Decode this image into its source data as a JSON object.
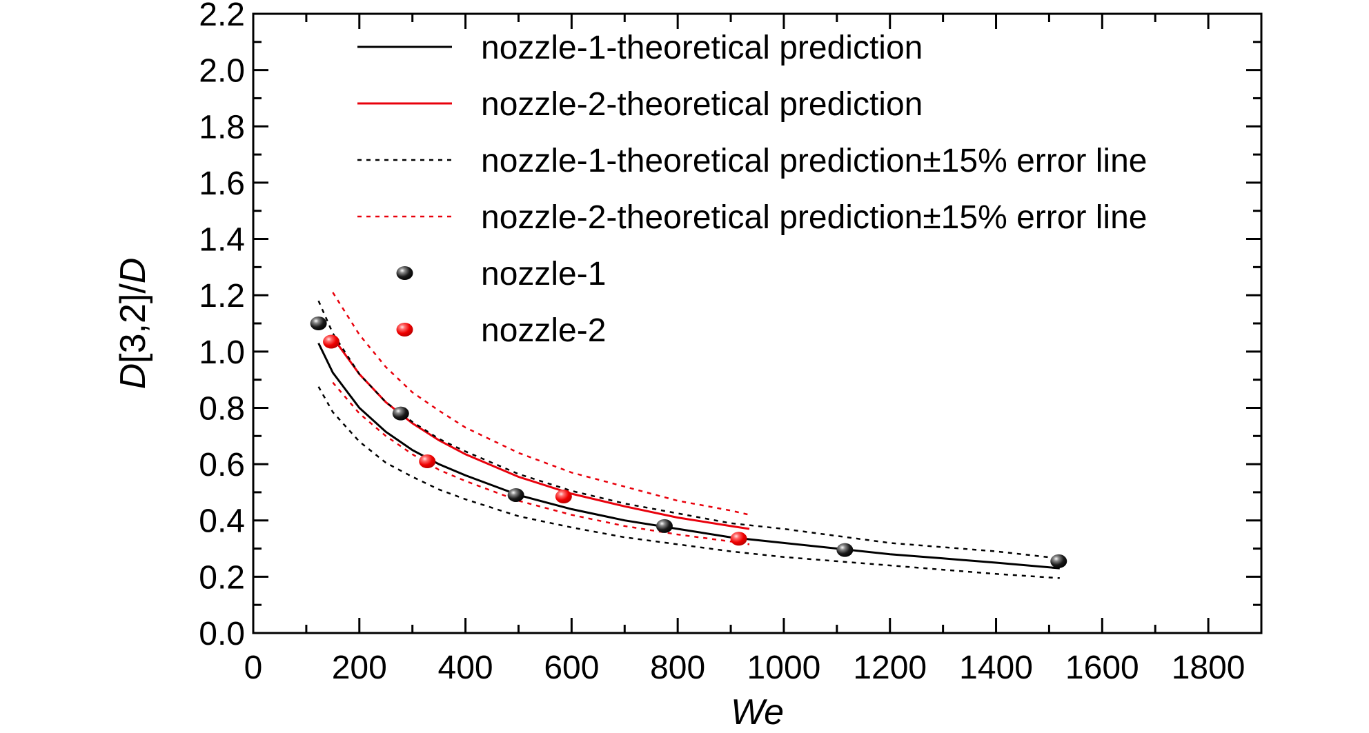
{
  "chart_data": {
    "type": "scatter",
    "xlabel": "We",
    "ylabel_parts": [
      "D",
      "[3,2]/",
      "D"
    ],
    "xlim": [
      0,
      1900
    ],
    "ylim": [
      0,
      2.2
    ],
    "x_ticks": [
      "0",
      "200",
      "400",
      "600",
      "800",
      "1000",
      "1200",
      "1400",
      "1600",
      "1800"
    ],
    "x_tick_values": [
      0,
      200,
      400,
      600,
      800,
      1000,
      1200,
      1400,
      1600,
      1800
    ],
    "y_ticks": [
      "0.0",
      "0.2",
      "0.4",
      "0.6",
      "0.8",
      "1.0",
      "1.2",
      "1.4",
      "1.6",
      "1.8",
      "2.0",
      "2.2"
    ],
    "y_tick_values": [
      0,
      0.2,
      0.4,
      0.6,
      0.8,
      1.0,
      1.2,
      1.4,
      1.6,
      1.8,
      2.0,
      2.2
    ],
    "legend_position": "top",
    "series": [
      {
        "name": "nozzle-1-theoretical prediction",
        "kind": "line",
        "style": "solid",
        "color": "#000000",
        "x": [
          123,
          150,
          200,
          250,
          300,
          350,
          400,
          500,
          600,
          700,
          800,
          900,
          1000,
          1100,
          1200,
          1300,
          1400,
          1520
        ],
        "y": [
          1.03,
          0.925,
          0.8,
          0.715,
          0.65,
          0.6,
          0.56,
          0.49,
          0.44,
          0.4,
          0.37,
          0.34,
          0.32,
          0.3,
          0.28,
          0.265,
          0.25,
          0.23
        ]
      },
      {
        "name": "nozzle-2-theoretical prediction",
        "kind": "line",
        "style": "solid",
        "color": "#e8000b",
        "x": [
          150,
          200,
          250,
          300,
          350,
          400,
          500,
          600,
          700,
          800,
          900,
          935
        ],
        "y": [
          1.05,
          0.92,
          0.82,
          0.745,
          0.685,
          0.635,
          0.555,
          0.495,
          0.45,
          0.41,
          0.38,
          0.37
        ]
      },
      {
        "name": "nozzle-1-theoretical prediction±15% error line",
        "kind": "line",
        "style": "dotted",
        "color": "#000000",
        "bands": [
          {
            "x": [
              123,
              150,
              200,
              250,
              300,
              350,
              400,
              500,
              600,
              700,
              800,
              900,
              1000,
              1100,
              1200,
              1300,
              1400,
              1520
            ],
            "y": [
              1.18,
              1.065,
              0.92,
              0.82,
              0.75,
              0.69,
              0.645,
              0.565,
              0.505,
              0.46,
              0.425,
              0.39,
              0.37,
              0.345,
              0.32,
              0.305,
              0.29,
              0.265
            ]
          },
          {
            "x": [
              123,
              150,
              200,
              250,
              300,
              350,
              400,
              500,
              600,
              700,
              800,
              900,
              1000,
              1100,
              1200,
              1300,
              1400,
              1520
            ],
            "y": [
              0.875,
              0.785,
              0.68,
              0.605,
              0.555,
              0.51,
              0.475,
              0.415,
              0.375,
              0.34,
              0.315,
              0.29,
              0.27,
              0.255,
              0.24,
              0.225,
              0.21,
              0.195
            ]
          }
        ]
      },
      {
        "name": "nozzle-2-theoretical prediction±15% error line",
        "kind": "line",
        "style": "dotted",
        "color": "#e8000b",
        "bands": [
          {
            "x": [
              150,
              200,
              250,
              300,
              350,
              400,
              500,
              600,
              700,
              800,
              900,
              935
            ],
            "y": [
              1.21,
              1.06,
              0.945,
              0.855,
              0.79,
              0.73,
              0.64,
              0.57,
              0.52,
              0.47,
              0.435,
              0.42
            ]
          },
          {
            "x": [
              150,
              200,
              250,
              300,
              350,
              400,
              500,
              600,
              700,
              800,
              900,
              935
            ],
            "y": [
              0.89,
              0.78,
              0.7,
              0.635,
              0.58,
              0.54,
              0.47,
              0.42,
              0.38,
              0.35,
              0.325,
              0.315
            ]
          }
        ]
      },
      {
        "name": "nozzle-1",
        "kind": "points",
        "color": "#000000",
        "x": [
          123,
          278,
          495,
          775,
          1115,
          1518
        ],
        "y": [
          1.1,
          0.78,
          0.49,
          0.38,
          0.295,
          0.255
        ]
      },
      {
        "name": "nozzle-2",
        "kind": "points",
        "color": "#e8000b",
        "x": [
          147,
          328,
          585,
          915
        ],
        "y": [
          1.035,
          0.61,
          0.485,
          0.335
        ]
      }
    ]
  }
}
